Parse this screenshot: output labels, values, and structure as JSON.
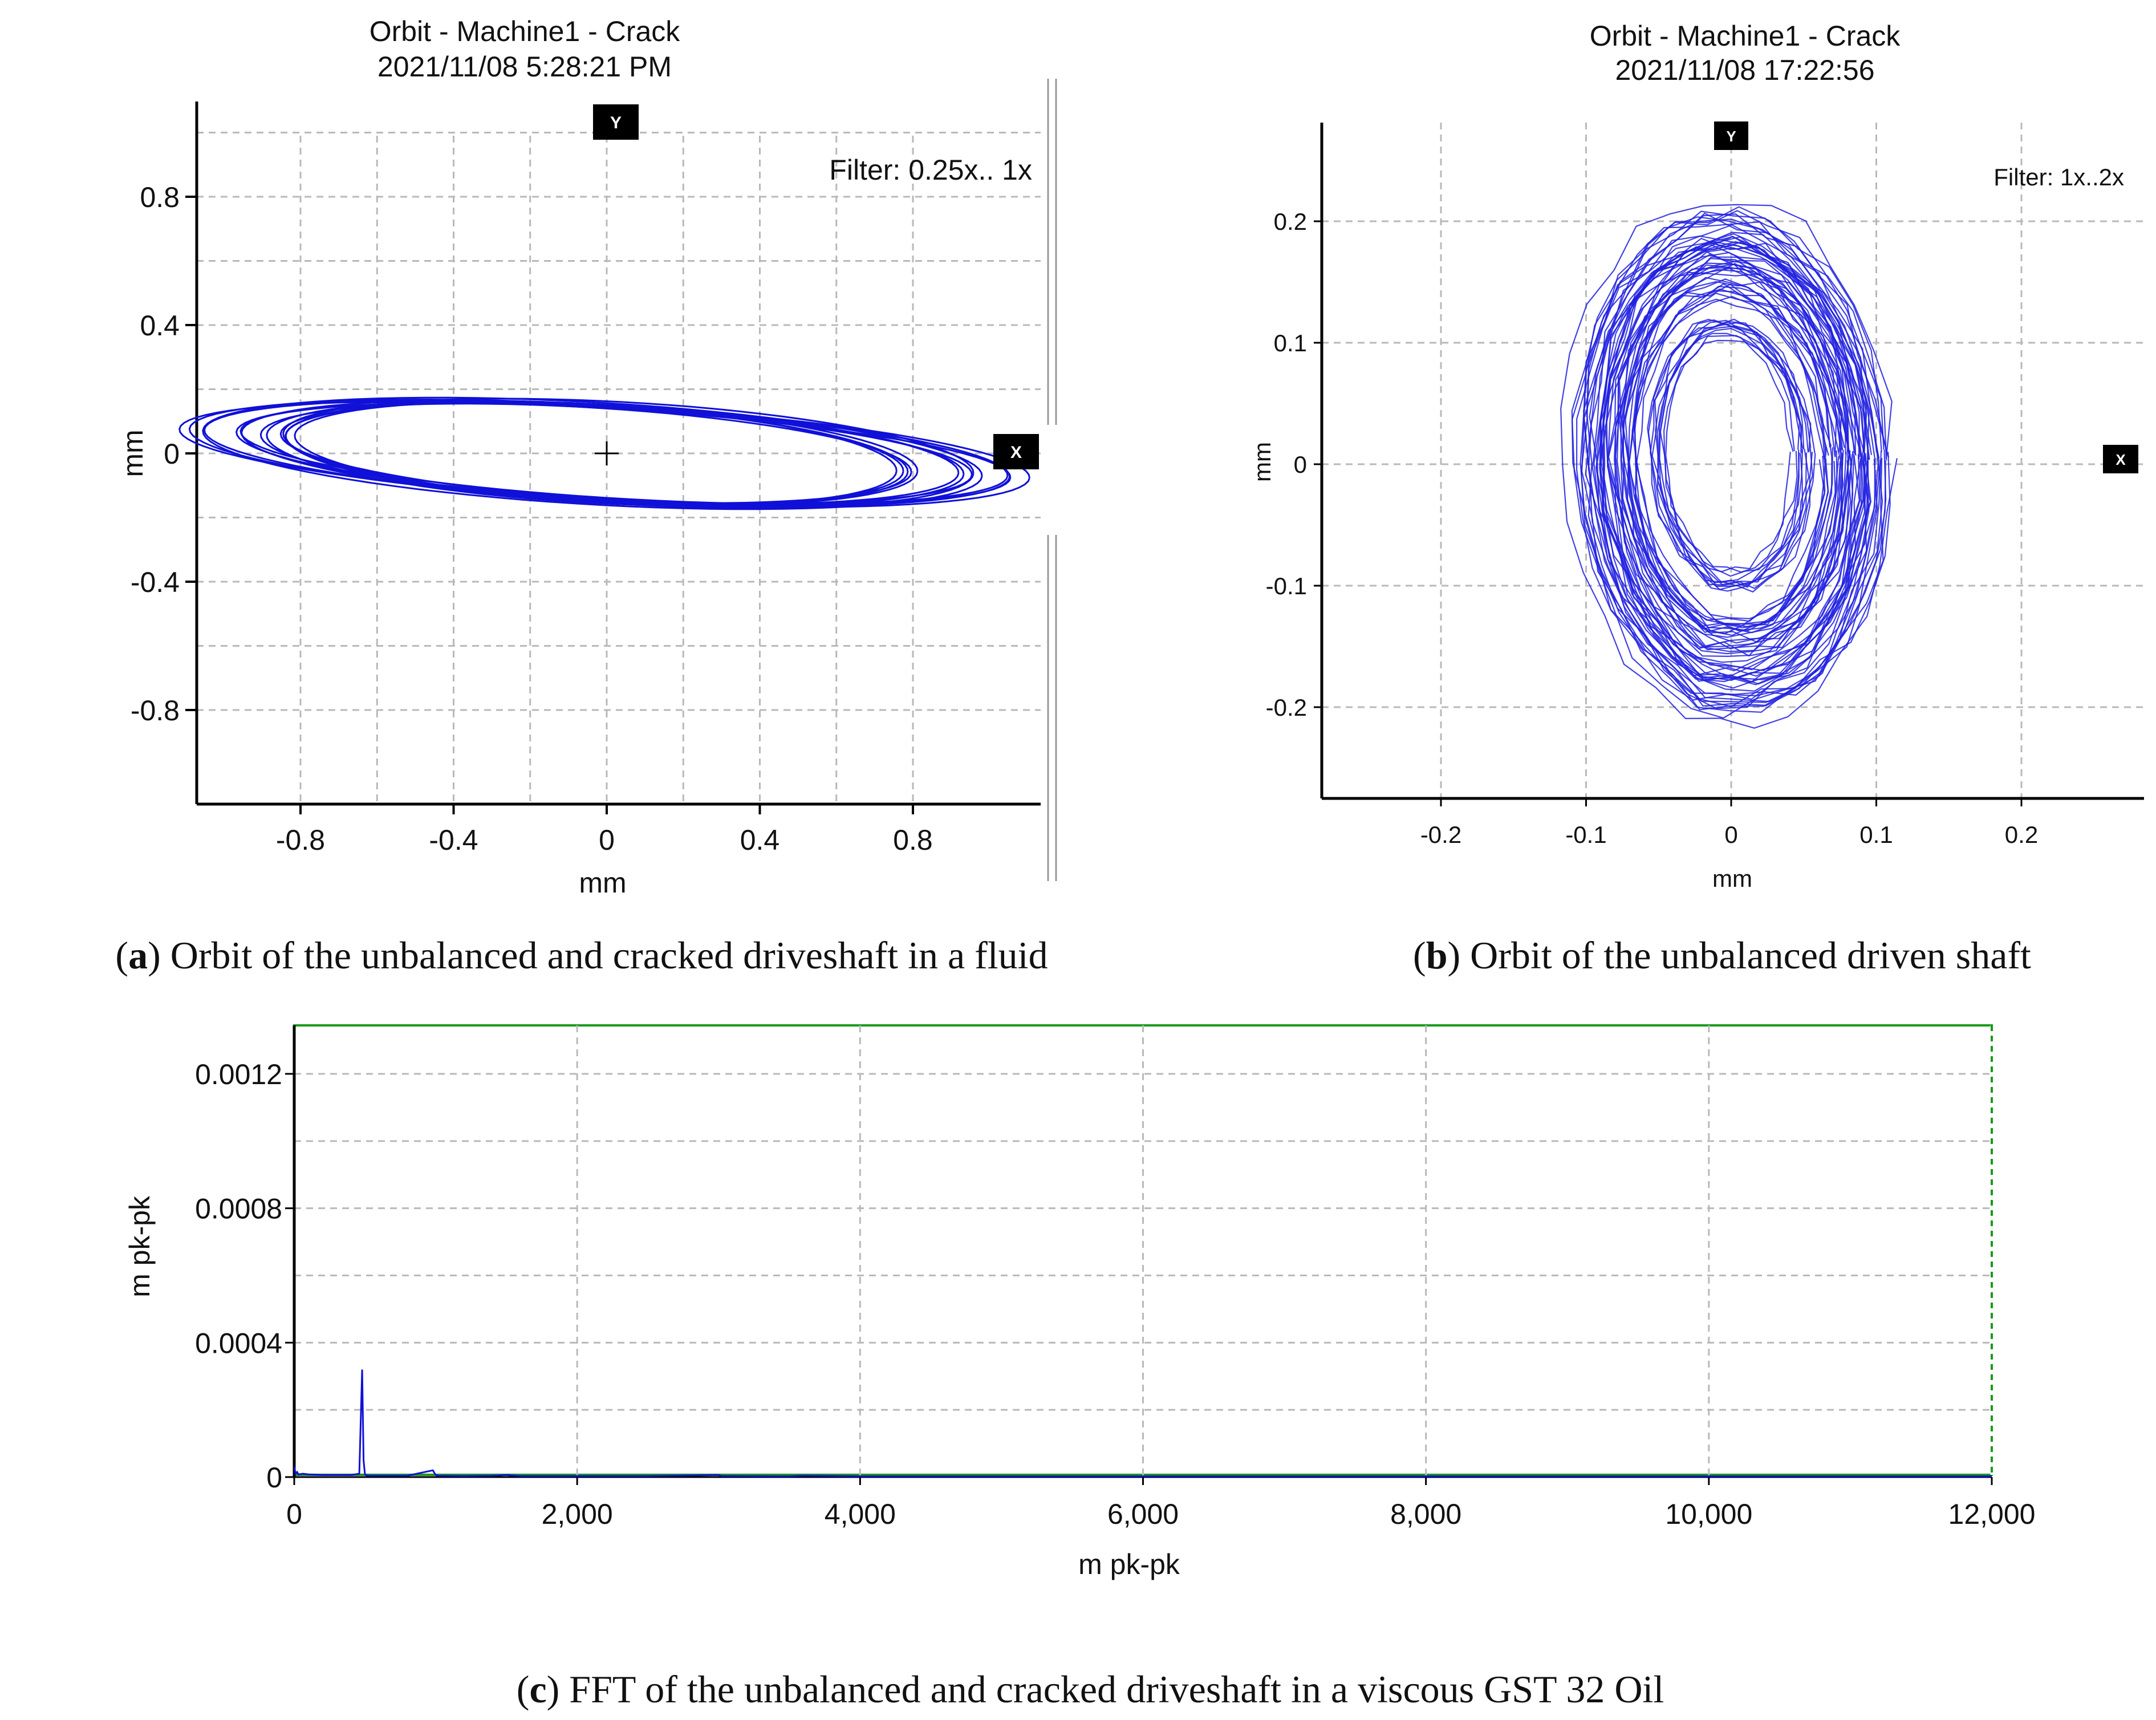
{
  "chart_data": [
    {
      "type": "scatter",
      "panel": "a",
      "title": "Orbit - Machine1 - Crack",
      "subtitle": "2021/11/08  5:28:21 PM",
      "filter": "Filter: 0.25x.. 1x",
      "xlabel": "mm",
      "ylabel": "mm",
      "xlim": [
        -1.08,
        1.08
      ],
      "ylim": [
        -1.08,
        1.08
      ],
      "xticks": [
        -0.8,
        -0.4,
        0,
        0.4,
        0.8
      ],
      "xtick_labels": [
        "-0.8",
        "-0.4",
        "0",
        "0.4",
        "0.8"
      ],
      "yticks": [
        0.8,
        0.4,
        0,
        -0.4,
        -0.8
      ],
      "ytick_labels": [
        "0.8",
        "0.4",
        "0",
        "-0.4",
        "-0.8"
      ],
      "markers": {
        "y": "Y",
        "x": "X"
      },
      "orbit": {
        "center": [
          0,
          0
        ],
        "rx_range": [
          0.8,
          1.1
        ],
        "ry_range": [
          0.14,
          0.16
        ],
        "tilt_deg": -4,
        "loops": 14
      },
      "caption_label": "a",
      "caption": "Orbit of the unbalanced and cracked driveshaft in a fluid"
    },
    {
      "type": "scatter",
      "panel": "b",
      "title": "Orbit - Machine1 - Crack",
      "subtitle": "2021/11/08  17:22:56",
      "filter": "Filter: 1x..2x",
      "xlabel": "mm",
      "ylabel": "mm",
      "xlim": [
        -0.28,
        0.28
      ],
      "ylim": [
        -0.28,
        0.28
      ],
      "xticks": [
        -0.2,
        -0.1,
        0,
        0.1,
        0.2
      ],
      "xtick_labels": [
        "-0.2",
        "-0.1",
        "0",
        "0.1",
        "0.2"
      ],
      "yticks": [
        0.2,
        0.1,
        0,
        -0.1,
        -0.2
      ],
      "ytick_labels": [
        "0.2",
        "0.1",
        "0",
        "-0.1",
        "-0.2"
      ],
      "markers": {
        "y": "Y",
        "x": "X"
      },
      "orbit": {
        "center": [
          0,
          0.01
        ],
        "rx_range": [
          0.02,
          0.13
        ],
        "ry_range": [
          0.05,
          0.25
        ],
        "loops": 60
      },
      "caption_label": "b",
      "caption": "Orbit of the unbalanced driven shaft"
    },
    {
      "type": "line",
      "panel": "c",
      "xlabel": "m pk-pk",
      "ylabel": "m pk-pk",
      "xlim": [
        0,
        12000
      ],
      "ylim": [
        0,
        0.0013
      ],
      "xticks": [
        0,
        2000,
        4000,
        6000,
        8000,
        10000,
        12000
      ],
      "xtick_labels": [
        "0",
        "2,000",
        "4,000",
        "6,000",
        "8,000",
        "10,000",
        "12,000"
      ],
      "yticks": [
        0,
        0.0004,
        0.0008,
        0.0012
      ],
      "ytick_labels": [
        "0",
        "0.0004",
        "0.0008",
        "0.0012"
      ],
      "series": [
        {
          "name": "FFT",
          "x": [
            0,
            10,
            20,
            30,
            60,
            100,
            200,
            300,
            400,
            460,
            480,
            490,
            500,
            510,
            530,
            600,
            800,
            980,
            1000,
            1020,
            1200,
            1400,
            1500,
            1600,
            2000,
            2500,
            3000,
            3020,
            3500,
            3600,
            4000,
            6000,
            8000,
            10000,
            12000
          ],
          "y": [
            3e-05,
            1e-05,
            1.5e-05,
            8e-06,
            1e-05,
            8e-06,
            6e-06,
            6e-06,
            6e-06,
            1e-05,
            0.00032,
            5e-05,
            8e-06,
            5e-06,
            4e-06,
            4e-06,
            4e-06,
            2e-05,
            6e-06,
            4e-06,
            3e-06,
            4e-06,
            6e-06,
            3e-06,
            3e-06,
            3e-06,
            6e-06,
            3e-06,
            2e-06,
            4e-06,
            2e-06,
            2e-06,
            2e-06,
            2e-06,
            2e-06
          ]
        }
      ],
      "caption_label": "c",
      "caption": "FFT of the unbalanced and cracked driveshaft in a viscous GST 32 Oil"
    }
  ]
}
